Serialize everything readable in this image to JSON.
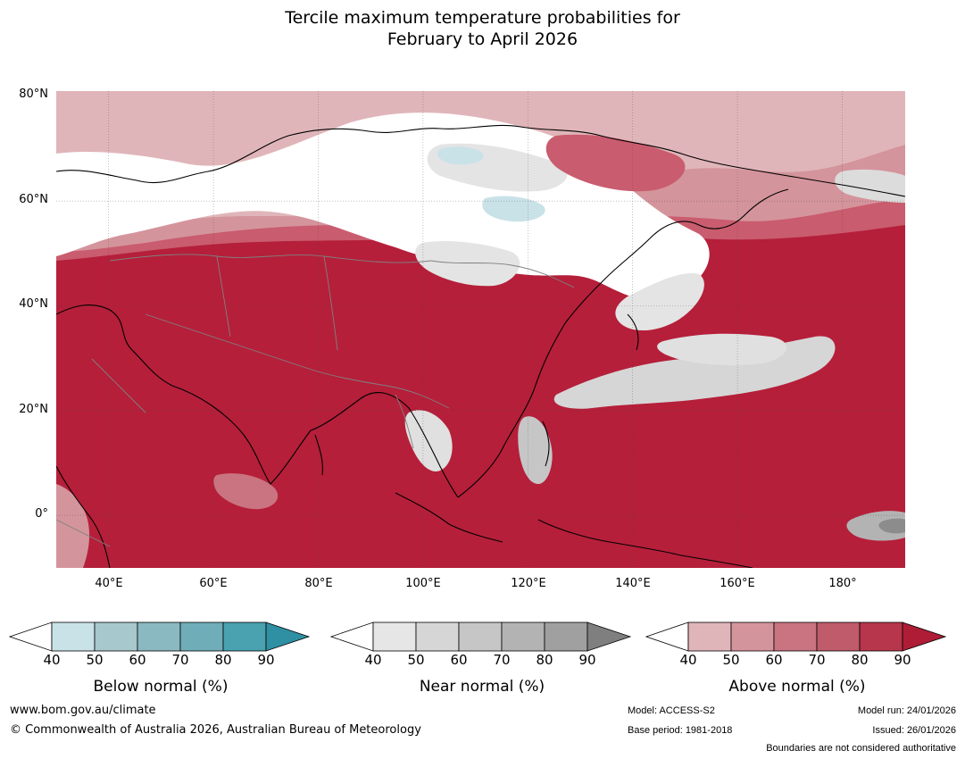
{
  "title_line1": "Tercile maximum temperature probabilities for",
  "title_line2": "February to April 2026",
  "lat_labels": [
    "80°N",
    "60°N",
    "40°N",
    "20°N",
    "0°"
  ],
  "lon_labels": [
    "40°E",
    "60°E",
    "80°E",
    "100°E",
    "120°E",
    "140°E",
    "160°E",
    "180°"
  ],
  "map_extent": {
    "lon_min": 30,
    "lon_max": 192,
    "lat_min": -10,
    "lat_max": 80
  },
  "legends": [
    {
      "title": "Below normal (%)",
      "ticks": [
        "40",
        "50",
        "60",
        "70",
        "80",
        "90"
      ],
      "colors": [
        "#c9e2e8",
        "#a7c8cd",
        "#8ab9c1",
        "#6fadb9",
        "#4aa1b0",
        "#2f8fa3"
      ]
    },
    {
      "title": "Near normal (%)",
      "ticks": [
        "40",
        "50",
        "60",
        "70",
        "80",
        "90"
      ],
      "colors": [
        "#e6e6e6",
        "#d6d6d6",
        "#c6c6c6",
        "#b3b3b3",
        "#a0a0a0",
        "#7f7f7f"
      ]
    },
    {
      "title": "Above normal (%)",
      "ticks": [
        "40",
        "50",
        "60",
        "70",
        "80",
        "90"
      ],
      "colors": [
        "#e0b5b9",
        "#d4949c",
        "#c97480",
        "#bf5b6a",
        "#b7364b",
        "#ae1c36"
      ]
    }
  ],
  "footer": {
    "website": "www.bom.gov.au/climate",
    "copyright": "© Commonwealth of Australia 2026, Australian Bureau of Meteorology",
    "model": "Model: ACCESS-S2",
    "base_period": "Base period: 1981-2018",
    "model_run": "Model run: 24/01/2026",
    "issued": "Issued: 26/01/2026",
    "disclaimer": "Boundaries are not considered authoritative"
  }
}
